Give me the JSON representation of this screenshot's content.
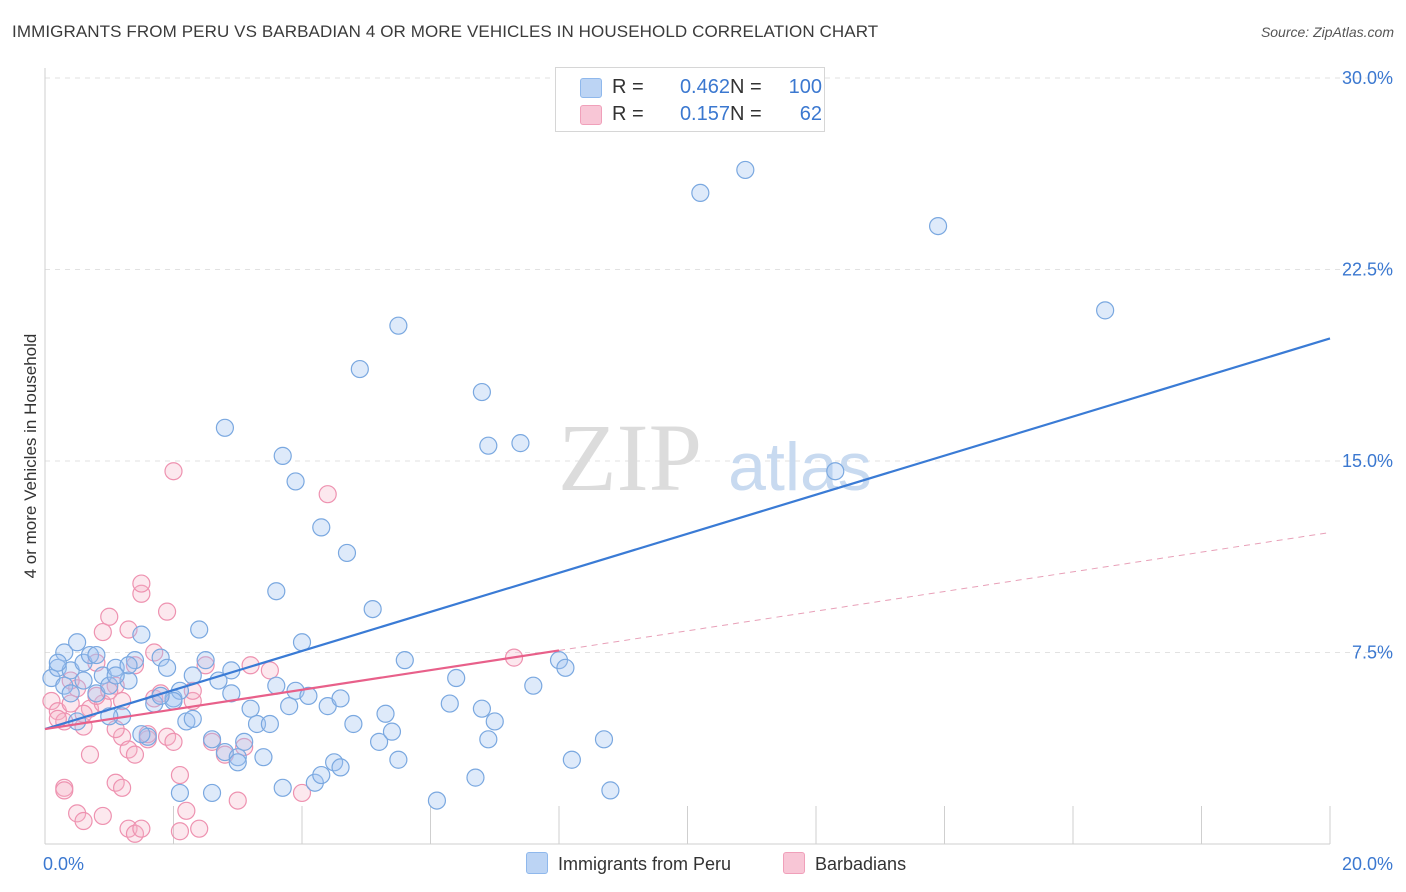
{
  "header": {
    "title": "IMMIGRANTS FROM PERU VS BARBADIAN 4 OR MORE VEHICLES IN HOUSEHOLD CORRELATION CHART",
    "source": "Source: ZipAtlas.com"
  },
  "watermark": {
    "zip": "ZIP",
    "atlas": "atlas"
  },
  "legend": {
    "r_label": "R =",
    "n_label": "N =",
    "series": [
      {
        "name": "Immigrants from Peru",
        "r": "0.462",
        "n": "100",
        "color": "#8fb8ec",
        "fill": "#bcd4f4"
      },
      {
        "name": "Barbadians",
        "r": "0.157",
        "n": "62",
        "color": "#f0a0ba",
        "fill": "#f8c6d6"
      }
    ]
  },
  "chart_data": {
    "type": "scatter",
    "title": "IMMIGRANTS FROM PERU VS BARBADIAN 4 OR MORE VEHICLES IN HOUSEHOLD CORRELATION CHART",
    "xlabel": "",
    "ylabel": "4 or more Vehicles in Household",
    "xlim": [
      0,
      20
    ],
    "ylim": [
      0,
      30
    ],
    "x_tick_labels": [
      "0.0%",
      "20.0%"
    ],
    "y_ticks": [
      7.5,
      15.0,
      22.5,
      30.0
    ],
    "y_tick_labels": [
      "7.5%",
      "15.0%",
      "22.5%",
      "30.0%"
    ],
    "series": [
      {
        "name": "Immigrants from Peru",
        "color": "#3a7bd5",
        "trend": {
          "x": [
            0,
            20
          ],
          "y": [
            4.5,
            19.8
          ],
          "dashed_from": null
        },
        "points": [
          [
            0.1,
            6.5
          ],
          [
            0.2,
            6.9
          ],
          [
            0.3,
            7.5
          ],
          [
            0.4,
            6.8
          ],
          [
            0.5,
            7.9
          ],
          [
            0.6,
            7.1
          ],
          [
            0.6,
            6.4
          ],
          [
            0.7,
            7.4
          ],
          [
            0.8,
            5.9
          ],
          [
            0.9,
            6.6
          ],
          [
            1.0,
            6.2
          ],
          [
            1.1,
            6.9
          ],
          [
            1.2,
            5.0
          ],
          [
            1.3,
            6.4
          ],
          [
            1.4,
            7.2
          ],
          [
            1.5,
            8.2
          ],
          [
            1.6,
            4.2
          ],
          [
            1.7,
            5.5
          ],
          [
            1.8,
            7.3
          ],
          [
            1.9,
            6.9
          ],
          [
            2.0,
            5.7
          ],
          [
            2.1,
            6.0
          ],
          [
            2.2,
            4.8
          ],
          [
            2.3,
            4.9
          ],
          [
            2.4,
            8.4
          ],
          [
            2.5,
            7.2
          ],
          [
            2.6,
            4.1
          ],
          [
            2.7,
            6.4
          ],
          [
            2.8,
            3.6
          ],
          [
            2.9,
            5.9
          ],
          [
            3.0,
            3.4
          ],
          [
            3.1,
            4.0
          ],
          [
            3.2,
            5.3
          ],
          [
            3.3,
            4.7
          ],
          [
            3.4,
            3.4
          ],
          [
            3.5,
            4.7
          ],
          [
            3.6,
            6.2
          ],
          [
            3.7,
            2.2
          ],
          [
            3.8,
            5.4
          ],
          [
            3.9,
            6.0
          ],
          [
            4.0,
            7.9
          ],
          [
            4.1,
            5.8
          ],
          [
            4.2,
            2.4
          ],
          [
            4.3,
            2.7
          ],
          [
            4.4,
            5.4
          ],
          [
            4.5,
            3.2
          ],
          [
            4.6,
            5.7
          ],
          [
            4.7,
            11.4
          ],
          [
            4.8,
            4.7
          ],
          [
            4.9,
            18.6
          ],
          [
            5.1,
            9.2
          ],
          [
            5.2,
            4.0
          ],
          [
            5.4,
            4.4
          ],
          [
            5.5,
            3.3
          ],
          [
            5.6,
            7.2
          ],
          [
            6.1,
            1.7
          ],
          [
            6.3,
            5.5
          ],
          [
            6.7,
            2.6
          ],
          [
            6.8,
            5.3
          ],
          [
            6.9,
            4.1
          ],
          [
            7.0,
            4.8
          ],
          [
            7.6,
            6.2
          ],
          [
            8.0,
            7.2
          ],
          [
            8.1,
            6.9
          ],
          [
            8.2,
            3.3
          ],
          [
            8.7,
            4.1
          ],
          [
            8.8,
            2.1
          ],
          [
            1.0,
            5.0
          ],
          [
            1.5,
            4.3
          ],
          [
            0.3,
            6.2
          ],
          [
            2.8,
            16.3
          ],
          [
            3.7,
            15.2
          ],
          [
            3.9,
            14.2
          ],
          [
            4.3,
            12.4
          ],
          [
            3.6,
            9.9
          ],
          [
            5.5,
            20.3
          ],
          [
            6.8,
            17.7
          ],
          [
            6.9,
            15.6
          ],
          [
            7.4,
            15.7
          ],
          [
            10.2,
            25.5
          ],
          [
            10.9,
            26.4
          ],
          [
            13.9,
            24.2
          ],
          [
            16.5,
            20.9
          ],
          [
            12.3,
            14.6
          ],
          [
            2.0,
            5.6
          ],
          [
            1.8,
            5.8
          ],
          [
            3.0,
            3.2
          ],
          [
            4.6,
            3.0
          ],
          [
            0.5,
            4.8
          ],
          [
            0.8,
            7.4
          ],
          [
            1.3,
            7.0
          ],
          [
            2.3,
            6.6
          ],
          [
            2.9,
            6.8
          ],
          [
            0.2,
            7.1
          ],
          [
            1.1,
            6.6
          ],
          [
            0.4,
            5.9
          ],
          [
            2.6,
            2.0
          ],
          [
            2.1,
            2.0
          ],
          [
            5.3,
            5.1
          ],
          [
            6.4,
            6.5
          ]
        ]
      },
      {
        "name": "Barbadians",
        "color": "#e8608a",
        "trend": {
          "x": [
            0,
            20
          ],
          "y": [
            4.5,
            12.2
          ],
          "dashed_from": 8.0
        },
        "points": [
          [
            0.1,
            5.6
          ],
          [
            0.2,
            5.2
          ],
          [
            0.3,
            4.8
          ],
          [
            0.4,
            5.5
          ],
          [
            0.5,
            6.1
          ],
          [
            0.6,
            4.6
          ],
          [
            0.7,
            5.3
          ],
          [
            0.8,
            7.1
          ],
          [
            0.9,
            5.5
          ],
          [
            1.0,
            8.9
          ],
          [
            1.1,
            6.2
          ],
          [
            1.2,
            4.2
          ],
          [
            1.3,
            3.7
          ],
          [
            1.4,
            3.5
          ],
          [
            1.5,
            9.8
          ],
          [
            1.6,
            4.1
          ],
          [
            1.7,
            5.7
          ],
          [
            1.8,
            5.9
          ],
          [
            1.9,
            4.2
          ],
          [
            2.0,
            14.6
          ],
          [
            2.1,
            2.7
          ],
          [
            2.2,
            1.3
          ],
          [
            2.3,
            5.6
          ],
          [
            2.5,
            7.0
          ],
          [
            2.6,
            4.0
          ],
          [
            2.8,
            3.5
          ],
          [
            3.0,
            1.7
          ],
          [
            3.1,
            3.8
          ],
          [
            3.2,
            7.0
          ],
          [
            3.5,
            6.8
          ],
          [
            4.4,
            13.7
          ],
          [
            4.0,
            2.0
          ],
          [
            7.3,
            7.3
          ],
          [
            0.3,
            2.2
          ],
          [
            0.5,
            1.2
          ],
          [
            0.6,
            0.9
          ],
          [
            0.9,
            1.1
          ],
          [
            1.1,
            2.4
          ],
          [
            1.2,
            2.2
          ],
          [
            1.3,
            0.6
          ],
          [
            1.4,
            0.4
          ],
          [
            1.5,
            0.6
          ],
          [
            2.1,
            0.5
          ],
          [
            2.4,
            0.6
          ],
          [
            0.4,
            6.4
          ],
          [
            0.6,
            5.1
          ],
          [
            0.8,
            5.8
          ],
          [
            1.0,
            6.0
          ],
          [
            1.4,
            7.0
          ],
          [
            1.7,
            7.5
          ],
          [
            1.9,
            9.1
          ],
          [
            2.3,
            6.0
          ],
          [
            0.2,
            4.9
          ],
          [
            0.7,
            3.5
          ],
          [
            1.1,
            4.5
          ],
          [
            1.6,
            4.3
          ],
          [
            0.9,
            8.3
          ],
          [
            1.3,
            8.4
          ],
          [
            1.5,
            10.2
          ],
          [
            0.3,
            2.1
          ],
          [
            1.2,
            5.6
          ],
          [
            2.0,
            4.0
          ]
        ]
      }
    ]
  },
  "bottom_legend": [
    "Immigrants from Peru",
    "Barbadians"
  ]
}
